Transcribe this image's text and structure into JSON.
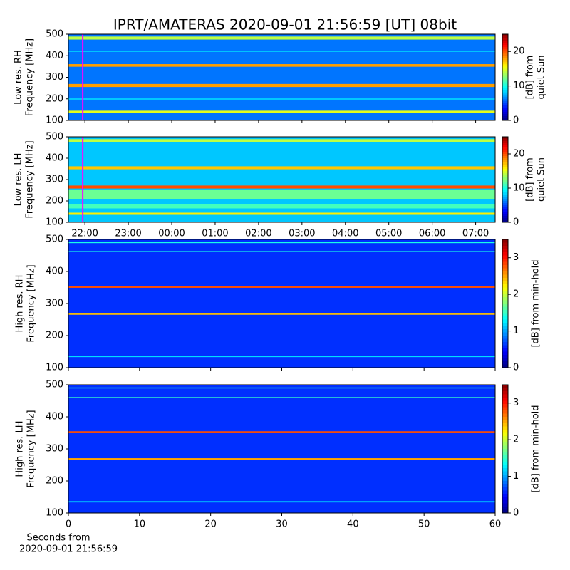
{
  "title": "IPRT/AMATERAS 2020-09-01 21:56:59 [UT]   08bit",
  "xlabel": [
    "Seconds from",
    "2020-09-01 21:56:59"
  ],
  "chart_data": [
    {
      "type": "spectrogram",
      "ylabel": [
        "Low res. RH",
        "Frequency [MHz]"
      ],
      "ylim": [
        100,
        500
      ],
      "yticks": [
        100,
        200,
        300,
        400,
        500
      ],
      "xlim": [
        21.62,
        31.45
      ],
      "marker_x": 21.95,
      "marker_color": "#ff00ff",
      "colorbar_label": [
        "[dB] from",
        "quiet Sun"
      ],
      "clim": [
        0,
        25
      ],
      "cticks": [
        0,
        10,
        20
      ],
      "background": 6,
      "bands": [
        {
          "freq": 140,
          "width": 10,
          "value": 15
        },
        {
          "freq": 200,
          "width": 10,
          "value": 8
        },
        {
          "freq": 262,
          "width": 14,
          "value": 18
        },
        {
          "freq": 355,
          "width": 12,
          "value": 18
        },
        {
          "freq": 420,
          "width": 5,
          "value": 8
        },
        {
          "freq": 482,
          "width": 14,
          "value": 14
        }
      ]
    },
    {
      "type": "spectrogram",
      "ylabel": [
        "Low res. LH",
        "Frequency [MHz]"
      ],
      "ylim": [
        100,
        500
      ],
      "yticks": [
        100,
        200,
        300,
        400,
        500
      ],
      "xlim": [
        21.62,
        31.45
      ],
      "marker_x": 21.95,
      "marker_color": "#ff00ff",
      "xticks": [
        {
          "value": 22,
          "label": "22:00"
        },
        {
          "value": 23,
          "label": "23:00"
        },
        {
          "value": 24,
          "label": "00:00"
        },
        {
          "value": 25,
          "label": "01:00"
        },
        {
          "value": 26,
          "label": "02:00"
        },
        {
          "value": 27,
          "label": "03:00"
        },
        {
          "value": 28,
          "label": "04:00"
        },
        {
          "value": 29,
          "label": "05:00"
        },
        {
          "value": 30,
          "label": "06:00"
        },
        {
          "value": 31,
          "label": "07:00"
        }
      ],
      "colorbar_label": [
        "[dB] from",
        "quiet Sun"
      ],
      "clim": [
        0,
        25
      ],
      "cticks": [
        0,
        10,
        20
      ],
      "background": 8,
      "bands": [
        {
          "freq": 140,
          "width": 10,
          "value": 16
        },
        {
          "freq": 175,
          "width": 20,
          "value": 11
        },
        {
          "freq": 230,
          "width": 40,
          "value": 12
        },
        {
          "freq": 265,
          "width": 14,
          "value": 20
        },
        {
          "freq": 355,
          "width": 14,
          "value": 17
        },
        {
          "freq": 482,
          "width": 14,
          "value": 14
        }
      ]
    },
    {
      "type": "spectrogram",
      "ylabel": [
        "High res. RH",
        "Frequency [MHz]"
      ],
      "ylim": [
        100,
        500
      ],
      "yticks": [
        100,
        200,
        300,
        400,
        500
      ],
      "xlim": [
        0,
        60
      ],
      "colorbar_label": [
        "[dB] from min-hold"
      ],
      "clim": [
        0,
        3.5
      ],
      "cticks": [
        0,
        1,
        2,
        3
      ],
      "background": 0.6,
      "bands": [
        {
          "freq": 135,
          "width": 4,
          "value": 1.2
        },
        {
          "freq": 268,
          "width": 6,
          "value": 2.4
        },
        {
          "freq": 352,
          "width": 6,
          "value": 2.8
        },
        {
          "freq": 462,
          "width": 3,
          "value": 1.4
        },
        {
          "freq": 490,
          "width": 3,
          "value": 1.4
        }
      ]
    },
    {
      "type": "spectrogram",
      "ylabel": [
        "High res. LH",
        "Frequency [MHz]"
      ],
      "ylim": [
        100,
        500
      ],
      "yticks": [
        100,
        200,
        300,
        400,
        500
      ],
      "xlim": [
        0,
        60
      ],
      "xticks": [
        0,
        10,
        20,
        30,
        40,
        50,
        60
      ],
      "colorbar_label": [
        "[dB] from min-hold"
      ],
      "clim": [
        0,
        3.5
      ],
      "cticks": [
        0,
        1,
        2,
        3
      ],
      "background": 0.6,
      "bands": [
        {
          "freq": 135,
          "width": 4,
          "value": 1.2
        },
        {
          "freq": 268,
          "width": 6,
          "value": 2.5
        },
        {
          "freq": 352,
          "width": 6,
          "value": 2.8
        },
        {
          "freq": 460,
          "width": 3,
          "value": 1.5
        },
        {
          "freq": 490,
          "width": 3,
          "value": 1.5
        }
      ]
    }
  ]
}
